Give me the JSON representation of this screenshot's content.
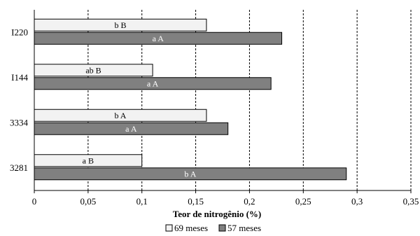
{
  "chart_data": {
    "type": "bar",
    "orientation": "horizontal",
    "categories": [
      "I220",
      "I144",
      "3334",
      "3281"
    ],
    "series": [
      {
        "name": "69 meses",
        "color": "#f2f2f2",
        "values": [
          0.16,
          0.11,
          0.16,
          0.1
        ],
        "labels": [
          "b B",
          "ab B",
          "b A",
          "a B"
        ]
      },
      {
        "name": "57 meses",
        "color": "#808080",
        "values": [
          0.23,
          0.22,
          0.18,
          0.29
        ],
        "labels": [
          "a A",
          "a A",
          "a A",
          "b A"
        ]
      }
    ],
    "xlabel": "Teor de nitrogênio (%)",
    "ylabel": "",
    "xlim": [
      0,
      0.35
    ],
    "xticks": [
      0,
      0.05,
      0.1,
      0.15,
      0.2,
      0.25,
      0.3,
      0.35
    ],
    "xtick_labels": [
      "0",
      "0,05",
      "0,1",
      "0,15",
      "0,2",
      "0,25",
      "0,3",
      "0,35"
    ],
    "grid": "vertical dashed",
    "legend_position": "bottom"
  }
}
